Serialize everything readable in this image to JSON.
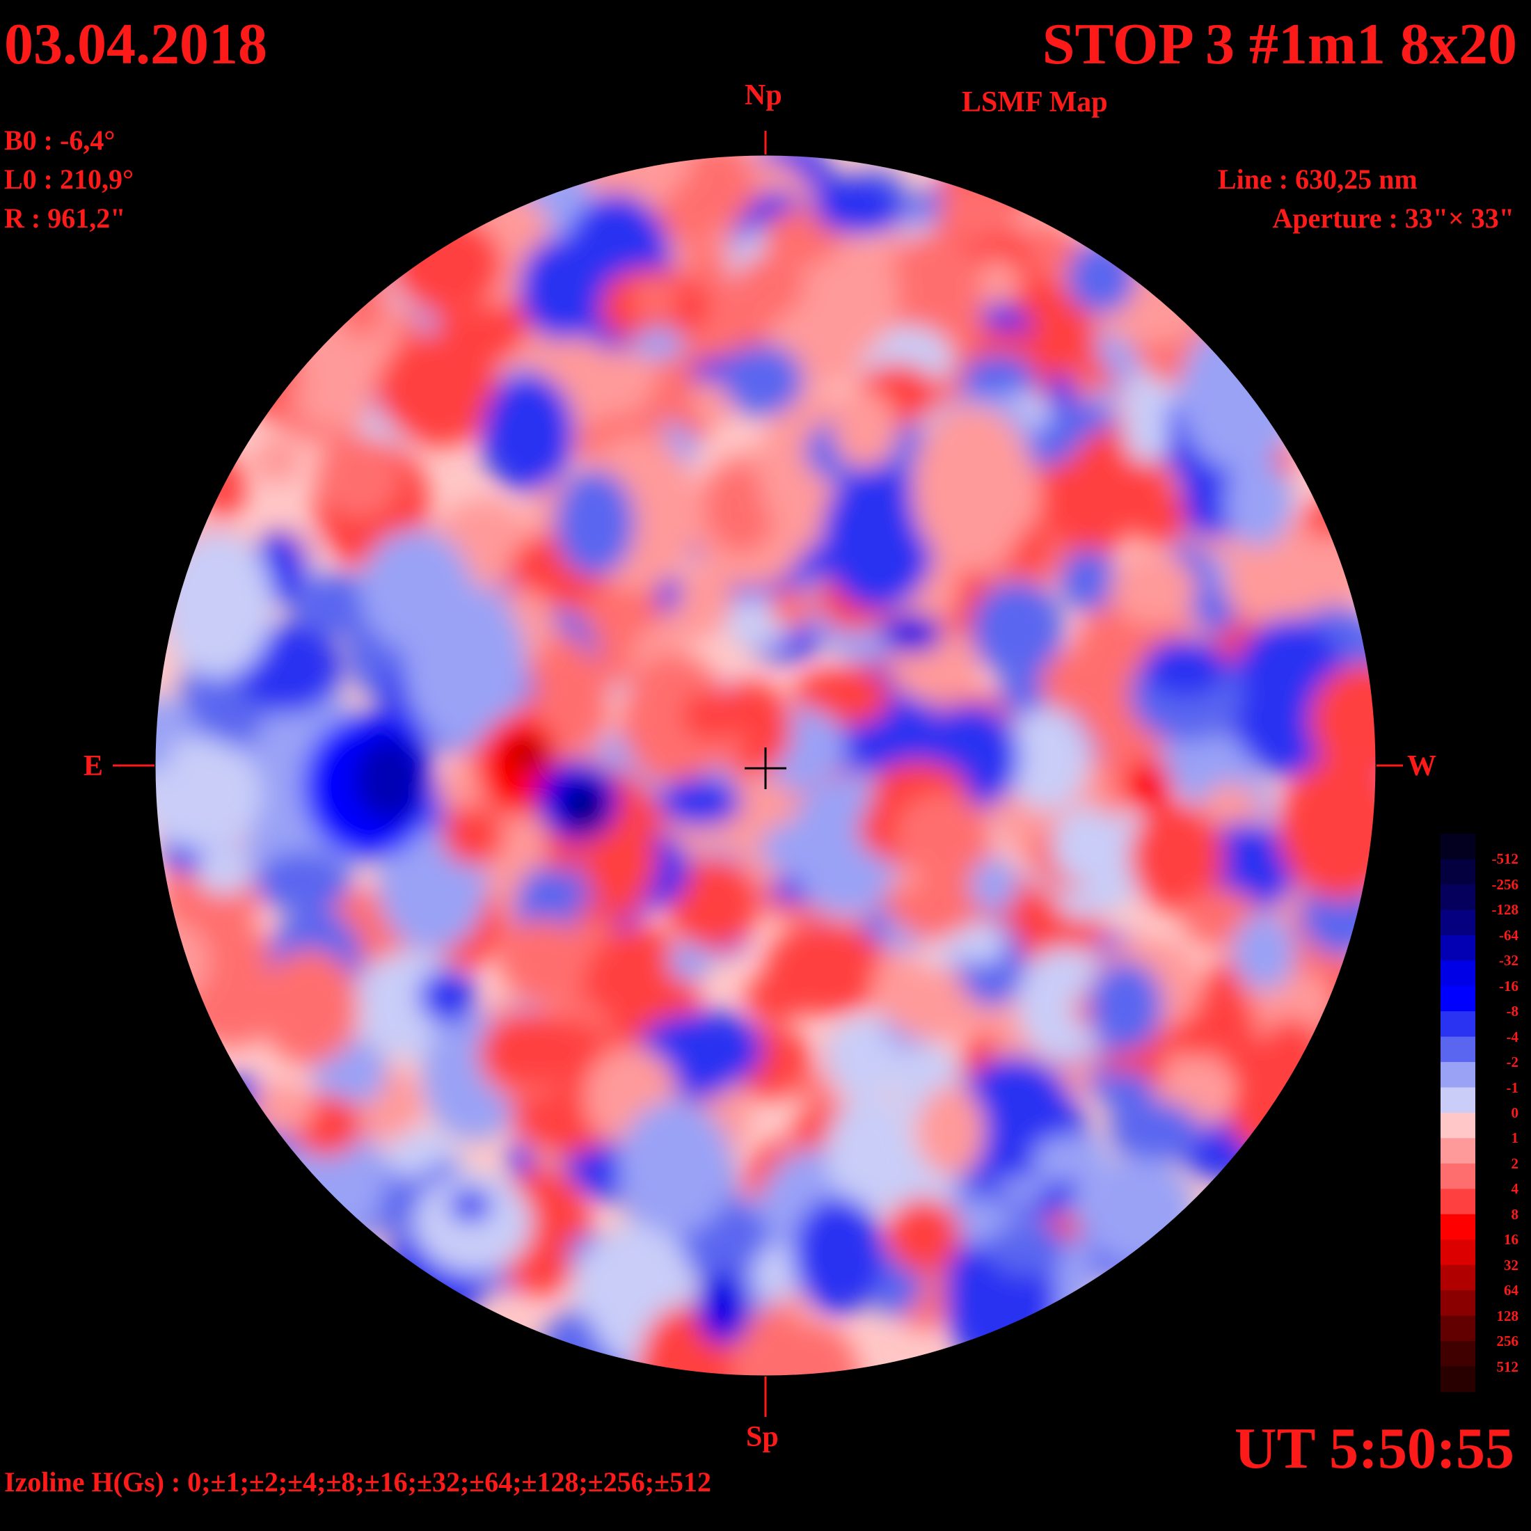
{
  "header": {
    "date": "03.04.2018",
    "title": "STOP 3 #1m1 8x20",
    "subtitle": "LSMF  Map"
  },
  "parameters": {
    "b0": "B0 : -6,4°",
    "l0": "L0 : 210,9°",
    "r": "R  : 961,2\""
  },
  "instrument": {
    "line": "Line :  630,25 nm",
    "aperture": "Aperture : 33\"× 33\""
  },
  "directions": {
    "north": "Np",
    "south": "Sp",
    "east": "E",
    "west": "W"
  },
  "time": "UT 5:50:55",
  "izoline": "Izoline H(Gs) : 0;±1;±2;±4;±8;±16;±32;±64;±128;±256;±512",
  "legend": {
    "labels": [
      "-512",
      "-256",
      "-128",
      "-64",
      "-32",
      "-16",
      "-8",
      "-4",
      "-2",
      "-1",
      "0",
      "1",
      "2",
      "4",
      "8",
      "16",
      "32",
      "64",
      "128",
      "256",
      "512"
    ],
    "colors": [
      "#02001e",
      "#040040",
      "#05005c",
      "#040080",
      "#0300b4",
      "#0000e6",
      "#0000ff",
      "#2a33f2",
      "#5a66f0",
      "#9aa2f6",
      "#c9cdf8",
      "#ffc7c7",
      "#ff9a9a",
      "#ff6e6e",
      "#ff4040",
      "#ff0000",
      "#dd0000",
      "#b00000",
      "#8a0000",
      "#620000",
      "#400000",
      "#280000"
    ]
  },
  "colors": {
    "text": "#ff1a1a",
    "background": "#000000",
    "izoline": "#ffffff"
  }
}
